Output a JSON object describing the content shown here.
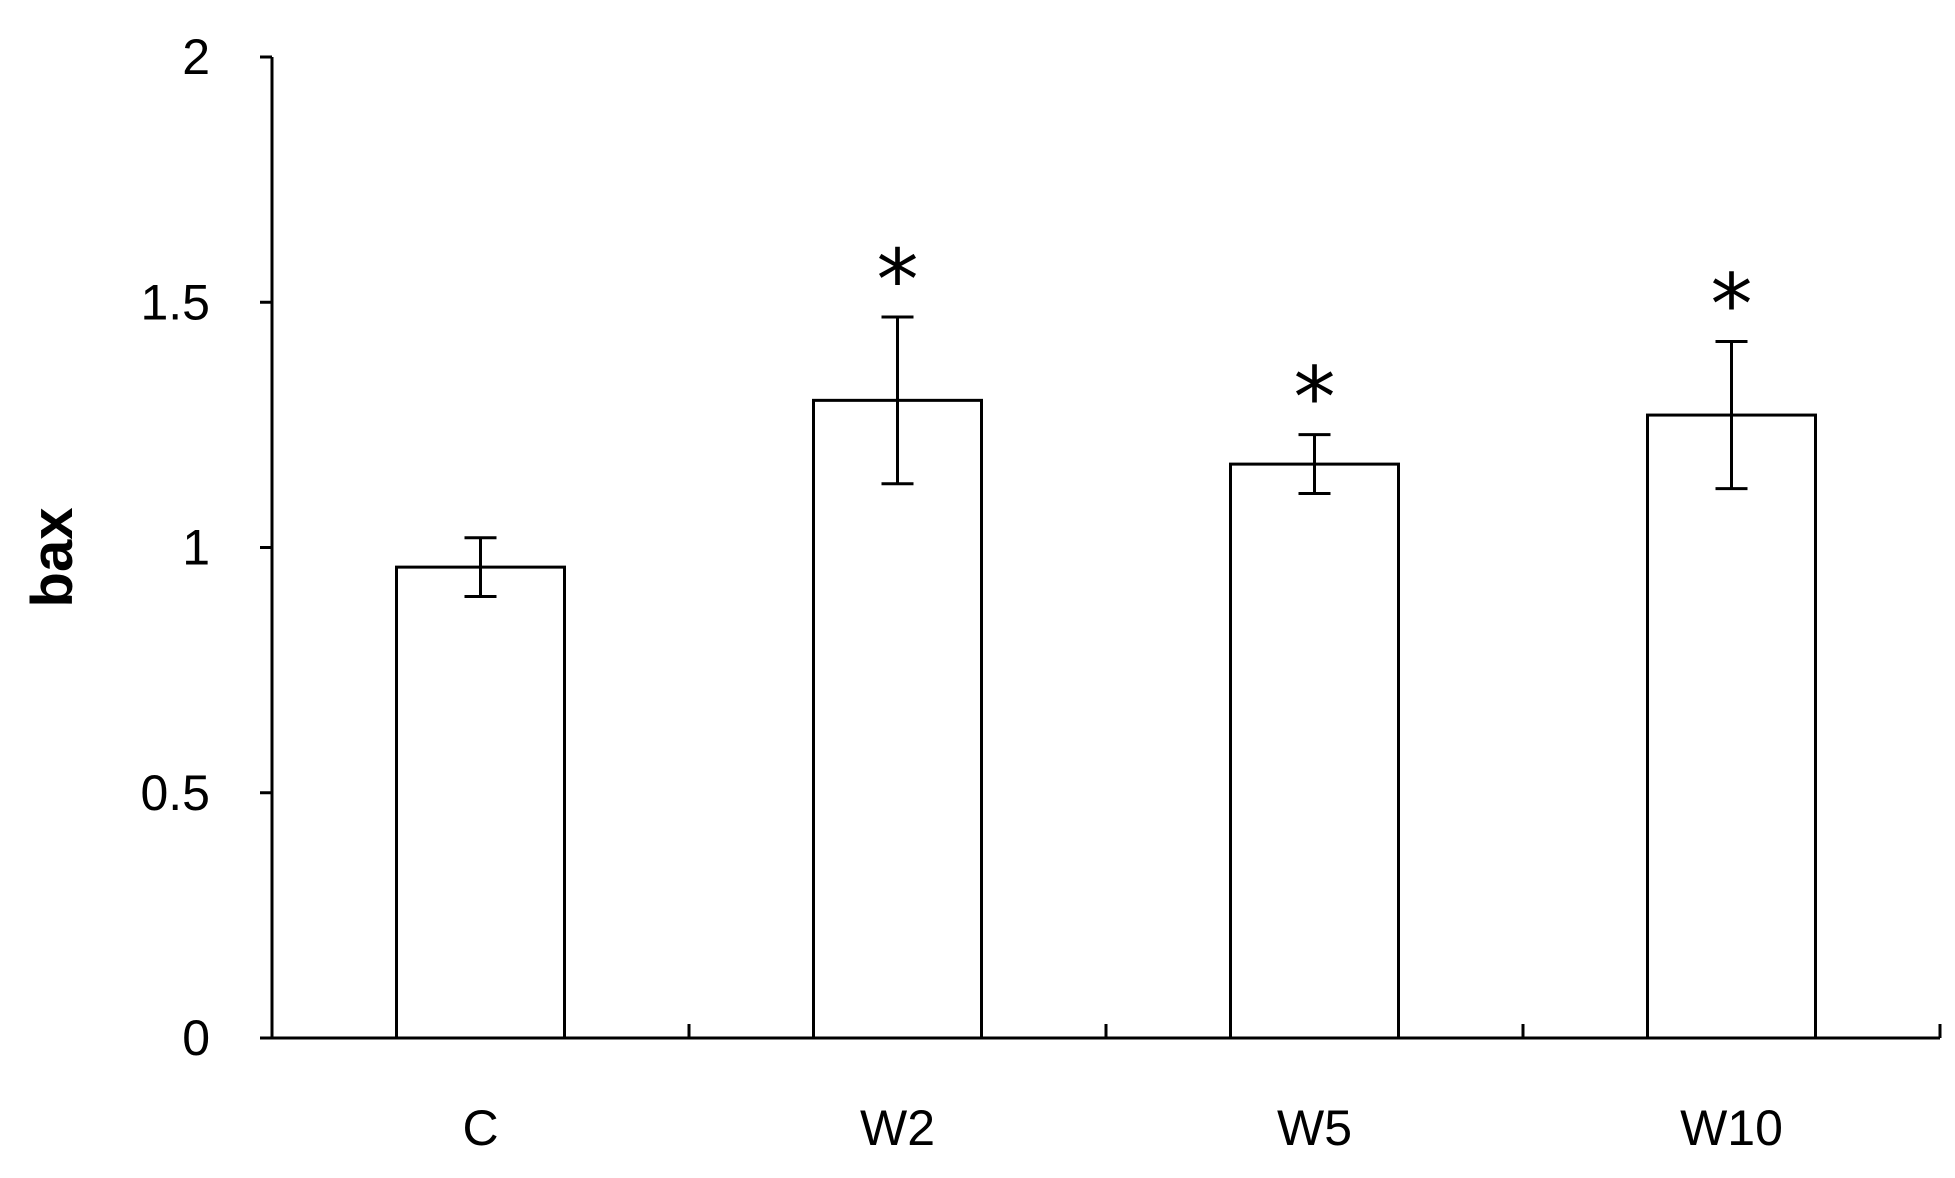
{
  "chart_data": {
    "type": "bar",
    "categories": [
      "C",
      "W2",
      "W5",
      "W10"
    ],
    "values": [
      0.96,
      1.3,
      1.17,
      1.27
    ],
    "errors": [
      0.06,
      0.17,
      0.06,
      0.15
    ],
    "annotations": [
      "",
      "*",
      "*",
      "*"
    ],
    "ylabel": "bax",
    "ylim": [
      0,
      2
    ],
    "yticks": [
      "0",
      "0.5",
      "1",
      "1.5",
      "2"
    ],
    "grid": false,
    "legend": "none",
    "bar_fill": "#ffffff",
    "bar_stroke": "#000000"
  }
}
